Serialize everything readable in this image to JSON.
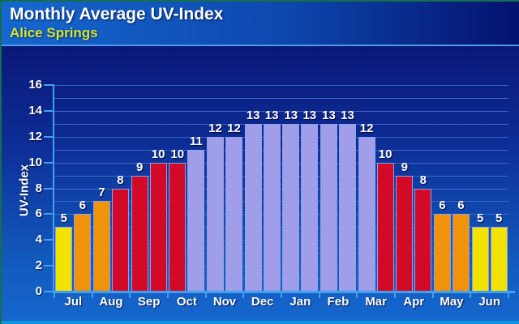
{
  "header": {
    "title": "Monthly Average UV-Index",
    "subtitle": "Alice Springs"
  },
  "chart_data": {
    "type": "bar",
    "title": "Monthly Average UV-Index",
    "subtitle": "Alice Springs",
    "xlabel": "",
    "ylabel": "UV-Index",
    "ylim": [
      0,
      16
    ],
    "yticks": [
      0,
      2,
      4,
      6,
      8,
      10,
      12,
      14,
      16
    ],
    "gridline_step": 1,
    "legend": "none",
    "grid": "horizontal",
    "categories": [
      "Jul",
      "Aug",
      "Sep",
      "Oct",
      "Nov",
      "Dec",
      "Jan",
      "Feb",
      "Mar",
      "Apr",
      "May",
      "Jun"
    ],
    "bars_per_month": 2,
    "values": [
      [
        5,
        6
      ],
      [
        7,
        8
      ],
      [
        9,
        10
      ],
      [
        10,
        11
      ],
      [
        12,
        12
      ],
      [
        13,
        13
      ],
      [
        13,
        13
      ],
      [
        13,
        13
      ],
      [
        12,
        10
      ],
      [
        9,
        8
      ],
      [
        6,
        6
      ],
      [
        5,
        5
      ]
    ],
    "bar_color_scale": [
      {
        "uv_max": 5,
        "color": "#f2e202",
        "level": "moderate"
      },
      {
        "uv_max": 7,
        "color": "#f0920a",
        "level": "high"
      },
      {
        "uv_max": 10,
        "color": "#d20a28",
        "level": "very-high"
      },
      {
        "uv_max": 16,
        "color": "#a09ee8",
        "level": "extreme"
      }
    ]
  },
  "colors": {
    "header_gradient_left": "#1568d0",
    "header_gradient_right": "#04116e",
    "chart_bg_top": "#0a1878",
    "chart_bg_bottom": "#1568cf",
    "axis": "#41a0f0",
    "gridline": "#5585d8",
    "bar_border": "#8fa0ea",
    "subtitle_text": "#d6e531",
    "label_text": "#ffffff"
  }
}
